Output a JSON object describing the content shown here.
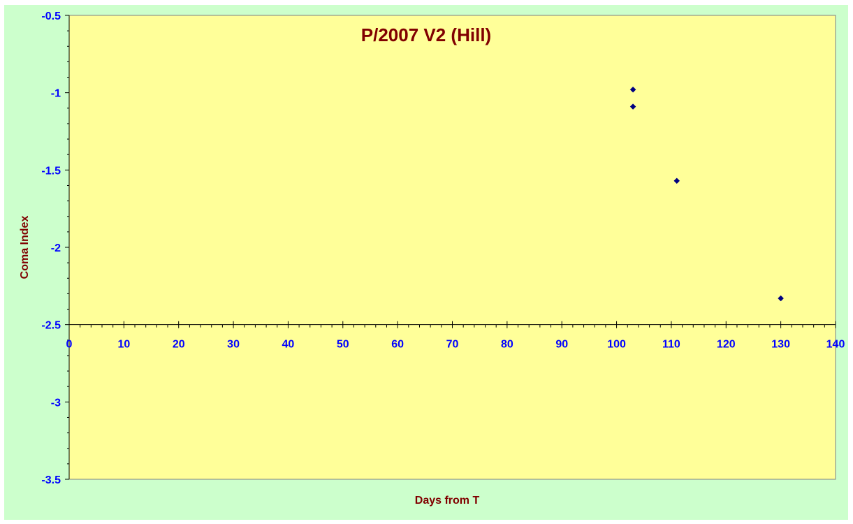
{
  "chart_data": {
    "type": "scatter",
    "title": "P/2007 V2 (Hill)",
    "xlabel": "Days from T",
    "ylabel": "Coma Index",
    "xlim": [
      0,
      140
    ],
    "ylim": [
      -3.5,
      -0.5
    ],
    "y_reversed": true,
    "x_axis_crosses_at": -2.5,
    "x_ticks": [
      "0",
      "10",
      "20",
      "30",
      "40",
      "50",
      "60",
      "70",
      "80",
      "90",
      "100",
      "110",
      "120",
      "130",
      "140"
    ],
    "y_ticks": [
      "-0.5",
      "-1",
      "-1.5",
      "-2",
      "-2.5",
      "-3",
      "-3.5"
    ],
    "grid": false,
    "legend": "none",
    "marker": "diamond",
    "series": [
      {
        "x": [
          103,
          103,
          111,
          130
        ],
        "y": [
          -0.98,
          -1.09,
          -1.57,
          -2.33
        ]
      }
    ]
  },
  "colors": {
    "chart_background": "#ccffcc",
    "plot_background": "#ffff99",
    "title": "#800000",
    "axis_title": "#800000",
    "tick_label": "#0000ff",
    "marker": "#000080",
    "axis_line": "#000000"
  }
}
